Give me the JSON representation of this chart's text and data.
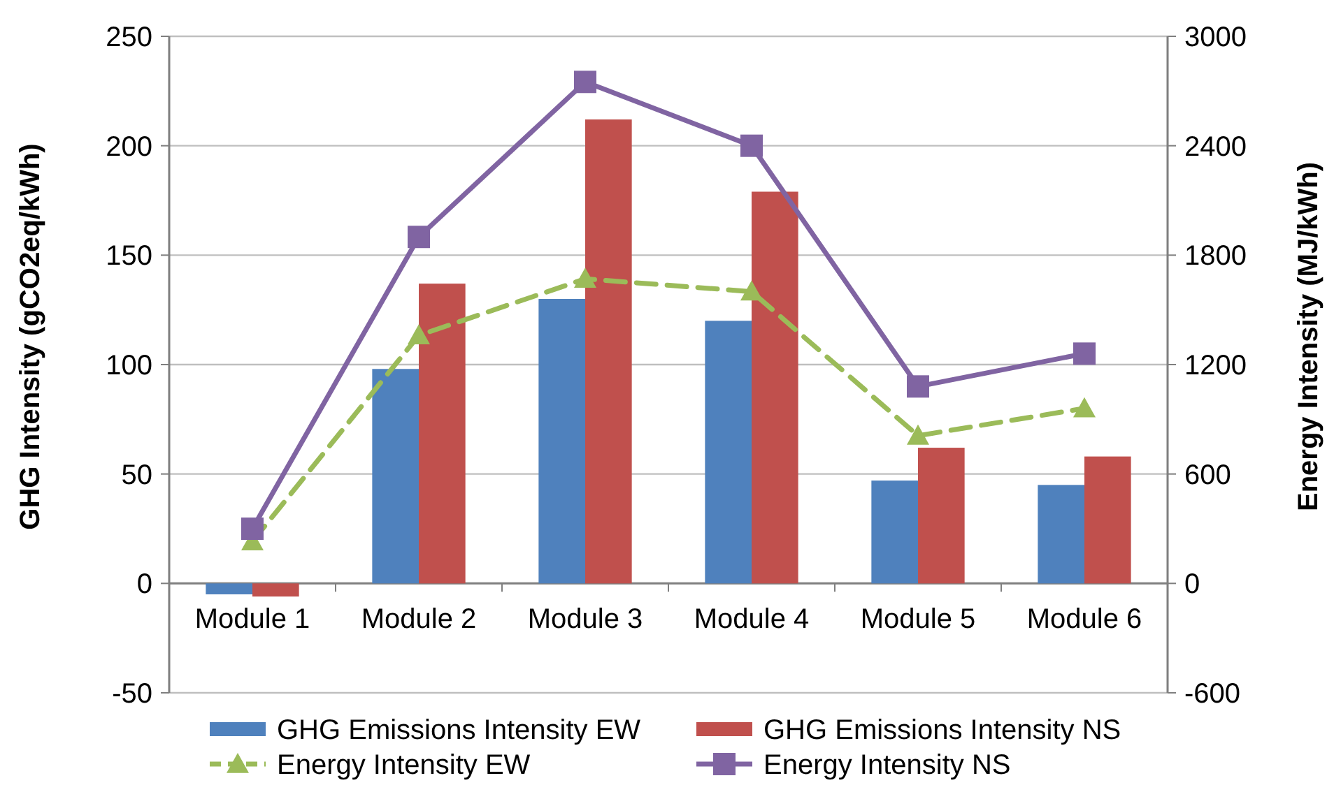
{
  "chart_data": {
    "type": "bar",
    "ylabel": "GHG Intensity (gCO2eq/kWh)",
    "y2label": "Energy Intensity (MJ/kWh)",
    "categories": [
      "Module 1",
      "Module 2",
      "Module 3",
      "Module 4",
      "Module 5",
      "Module 6"
    ],
    "series": [
      {
        "name": "GHG Emissions Intensity EW",
        "color": "#4f81bd",
        "values": [
          -5,
          98,
          130,
          120,
          47,
          45
        ]
      },
      {
        "name": "GHG Emissions Intensity NS",
        "color": "#c0504d",
        "values": [
          -6,
          137,
          212,
          179,
          62,
          58
        ]
      },
      {
        "name": "Energy Intensity EW",
        "type": "line",
        "axis": "y2",
        "color": "#9bbb59",
        "marker": "triangle",
        "line_style": "dashed",
        "values": [
          230,
          1360,
          1670,
          1600,
          810,
          960
        ]
      },
      {
        "name": "Energy Intensity NS",
        "type": "line",
        "axis": "y2",
        "color": "#8064a2",
        "marker": "square",
        "line_style": "solid",
        "values": [
          300,
          1900,
          2750,
          2400,
          1080,
          1260
        ]
      }
    ],
    "ylim": [
      -50,
      250
    ],
    "yticks": [
      -50,
      0,
      50,
      100,
      150,
      200,
      250
    ],
    "y2lim": [
      -600,
      3000
    ],
    "y2ticks": [
      -600,
      0,
      600,
      1200,
      1800,
      2400,
      3000
    ],
    "grid": "y",
    "legend": "bottom"
  }
}
